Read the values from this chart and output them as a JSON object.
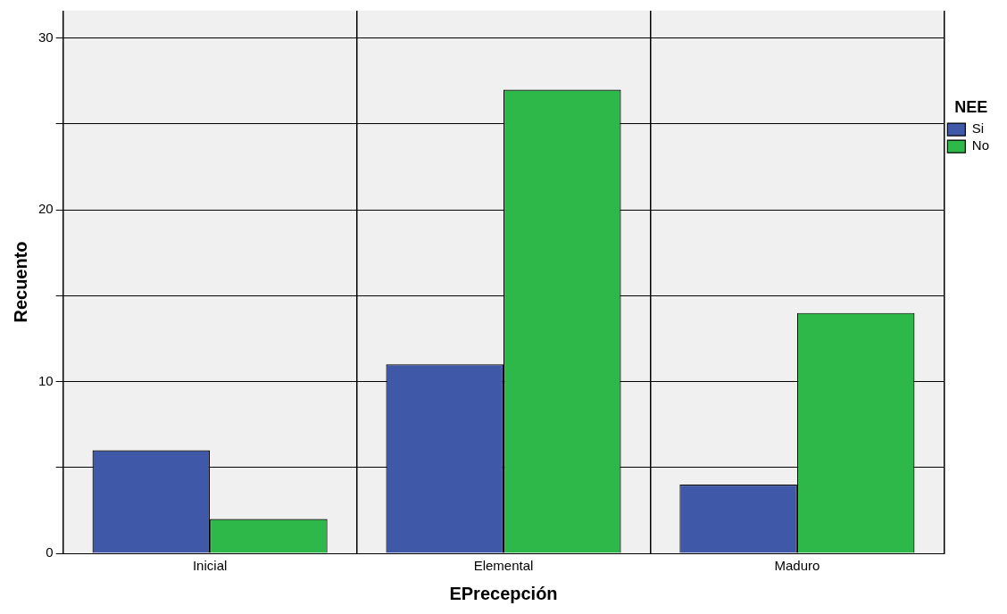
{
  "chart_data": {
    "type": "bar",
    "xlabel": "EPrecepción",
    "ylabel": "Recuento",
    "legend_title": "NEE",
    "categories": [
      "Inicial",
      "Elemental",
      "Maduro"
    ],
    "series": [
      {
        "name": "Si",
        "color": "#3f58a8",
        "values": [
          6,
          11,
          4
        ]
      },
      {
        "name": "No",
        "color": "#2fb84a",
        "values": [
          2,
          27,
          14
        ]
      }
    ],
    "ylim": [
      0,
      31.6
    ],
    "yticks": [
      0,
      {
        "value": 5,
        "label": null
      },
      10,
      {
        "value": 15,
        "label": null
      },
      20,
      {
        "value": 25,
        "label": null
      },
      30
    ],
    "grid": true,
    "legend": "top right"
  }
}
